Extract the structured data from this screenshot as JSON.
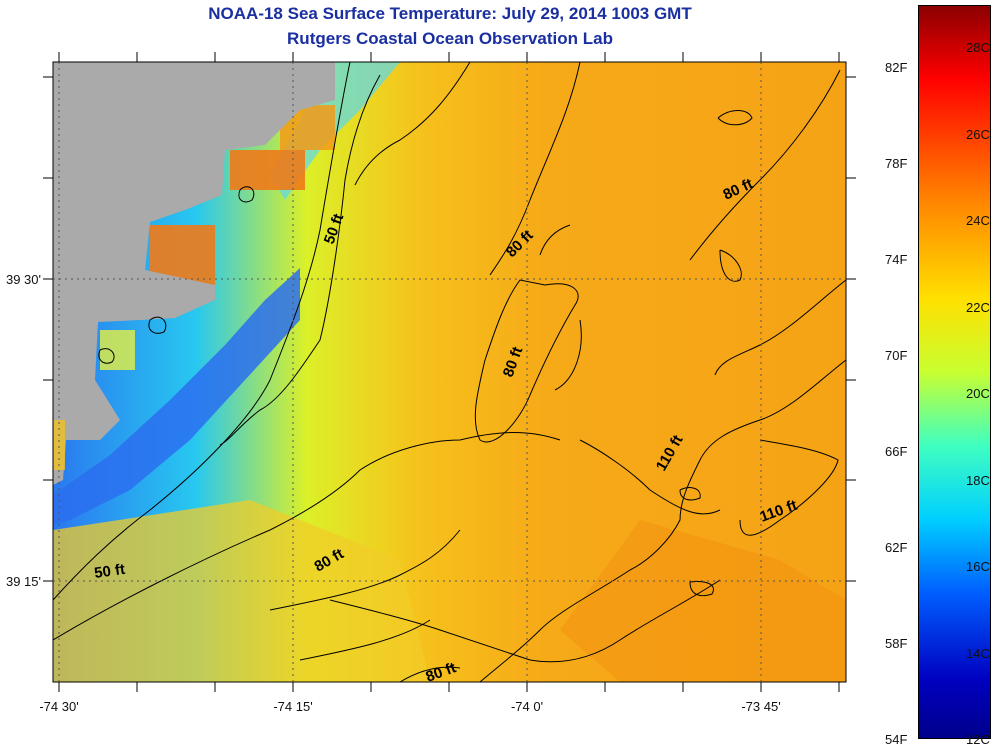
{
  "header": {
    "title": "NOAA-18 Sea Surface Temperature:  July 29, 2014 1003 GMT",
    "subtitle": "Rutgers Coastal Ocean Observation Lab"
  },
  "map": {
    "x_tick_labels": [
      "-74 30'",
      "-74 15'",
      "-74 0'",
      "-73 45'"
    ],
    "y_tick_labels": [
      "39 30'",
      "39 15'"
    ],
    "contour_labels": [
      "50 ft",
      "50 ft",
      "80 ft",
      "80 ft",
      "80 ft",
      "80 ft",
      "80 ft",
      "110 ft",
      "110 ft"
    ],
    "land_color": "#aaaaaa"
  },
  "colorbar": {
    "fahrenheit_labels": [
      "82F",
      "78F",
      "74F",
      "70F",
      "66F",
      "62F",
      "58F",
      "54F"
    ],
    "celsius_labels": [
      "28C",
      "26C",
      "24C",
      "22C",
      "20C",
      "18C",
      "16C",
      "14C",
      "12C"
    ],
    "colors": [
      "#8b0000",
      "#ff0000",
      "#ff8000",
      "#ffe000",
      "#c8ff30",
      "#40ffc0",
      "#00d0ff",
      "#0060ff",
      "#0000c0",
      "#00008b"
    ]
  }
}
